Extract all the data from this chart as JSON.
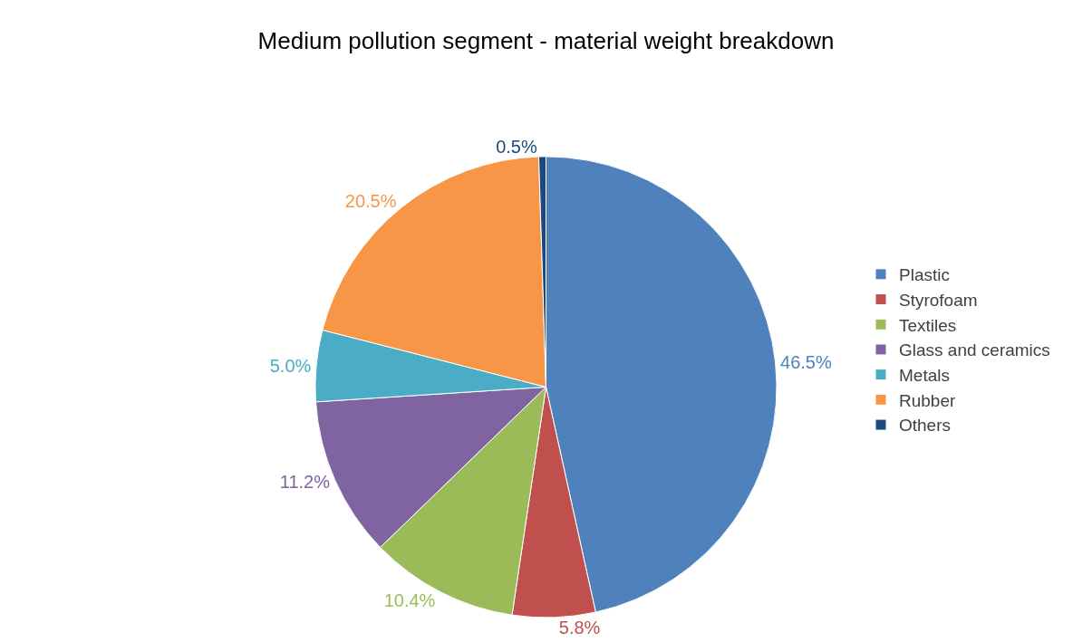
{
  "chart_data": {
    "type": "pie",
    "title": "Medium pollution segment - material weight breakdown",
    "categories": [
      "Plastic",
      "Styrofoam",
      "Textiles",
      "Glass and ceramics",
      "Metals",
      "Rubber",
      "Others"
    ],
    "values": [
      46.5,
      5.8,
      10.4,
      11.2,
      5.0,
      20.5,
      0.5
    ],
    "colors": [
      "#4f81bd",
      "#c0504d",
      "#9bbb59",
      "#8064a2",
      "#4bacc6",
      "#f79646",
      "#1f497d"
    ],
    "value_labels": [
      "46.5%",
      "5.8%",
      "10.4%",
      "11.2%",
      "5.0%",
      "20.5%",
      "0.5%"
    ],
    "legend": "right"
  }
}
